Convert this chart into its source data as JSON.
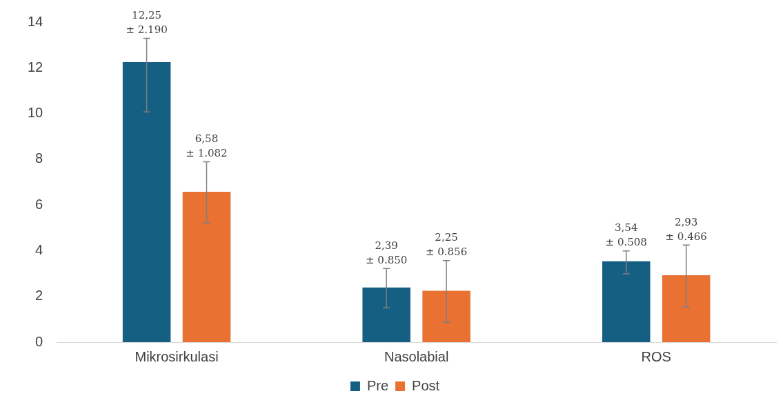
{
  "chart_data": {
    "type": "bar",
    "categories": [
      "Mikrosirkulasi",
      "Nasolabial",
      "ROS"
    ],
    "series": [
      {
        "name": "Pre",
        "color": "#156082",
        "values": [
          12.25,
          2.39,
          3.54
        ],
        "errors": [
          [
            10.07,
            13.29
          ],
          [
            1.51,
            3.22
          ],
          [
            2.99,
            3.99
          ]
        ],
        "value_labels": [
          "12,25\n± 2.190",
          "2,39\n± 0.850",
          "3,54\n± 0.508"
        ]
      },
      {
        "name": "Post",
        "color": "#e97132",
        "values": [
          6.58,
          2.25,
          2.93
        ],
        "errors": [
          [
            5.21,
            7.89
          ],
          [
            0.87,
            3.57
          ],
          [
            1.54,
            4.25
          ]
        ],
        "value_labels": [
          "6,58\n± 1.082",
          "2,25\n± 0.856",
          "2,93\n± 0.466"
        ]
      }
    ],
    "ylim": [
      0,
      14
    ],
    "yticks": [
      0,
      2,
      4,
      6,
      8,
      10,
      12,
      14
    ],
    "grid": false,
    "legend": "bottom"
  }
}
